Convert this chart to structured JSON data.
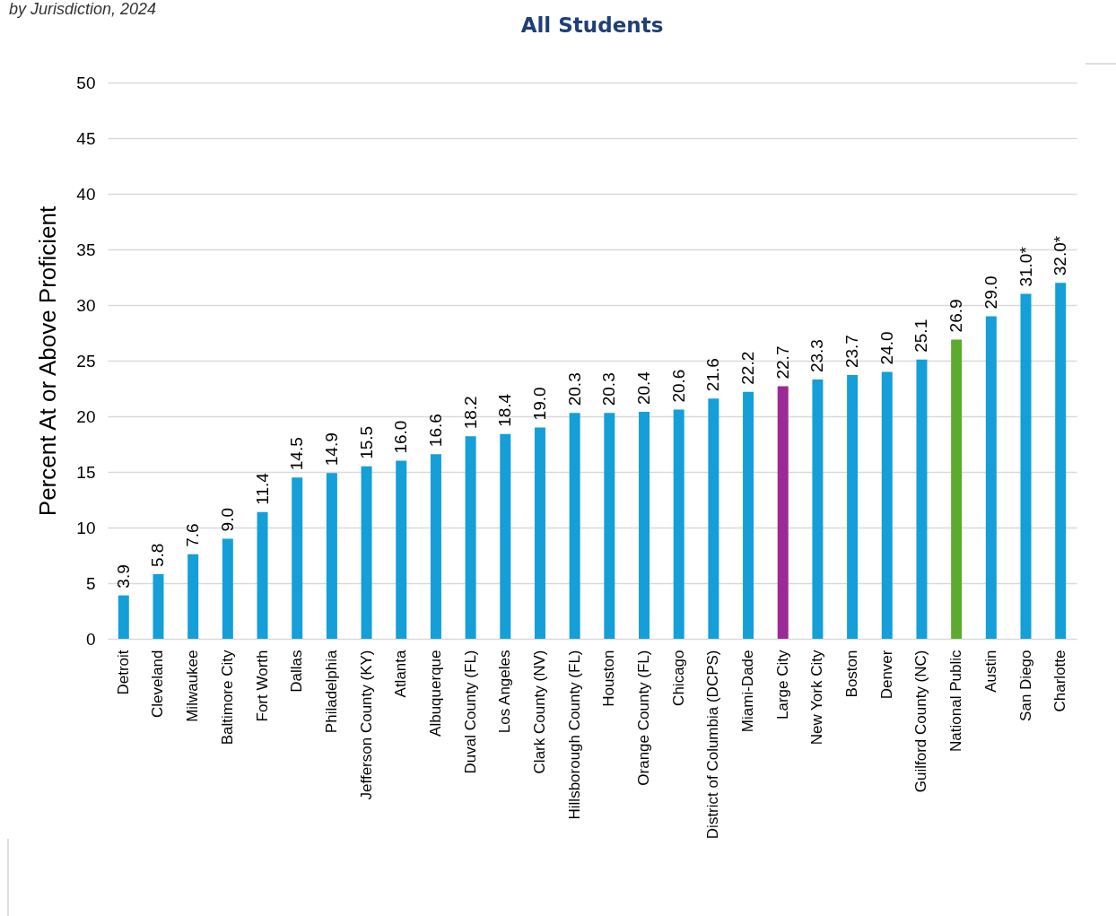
{
  "chart_data": {
    "type": "bar",
    "title": "All Students",
    "subtitle": "by Jurisdiction, 2024",
    "ylabel": "Percent At or Above Proficient",
    "categories": [
      "Detroit",
      "Cleveland",
      "Milwaukee",
      "Baltimore City",
      "Fort Worth",
      "Dallas",
      "Philadelphia",
      "Jefferson County (KY)",
      "Atlanta",
      "Albuquerque",
      "Duval County (FL)",
      "Los Angeles",
      "Clark County (NV)",
      "Hillsborough County (FL)",
      "Houston",
      "Orange County (FL)",
      "Chicago",
      "District of Columbia (DCPS)",
      "Miami-Dade",
      "Large City",
      "New York City",
      "Boston",
      "Denver",
      "Guilford County (NC)",
      "National Public",
      "Austin",
      "San Diego",
      "Charlotte"
    ],
    "values": [
      3.9,
      5.8,
      7.6,
      9.0,
      11.4,
      14.5,
      14.9,
      15.5,
      16.0,
      16.6,
      18.2,
      18.4,
      19.0,
      20.3,
      20.3,
      20.4,
      20.6,
      21.6,
      22.2,
      22.7,
      23.3,
      23.7,
      24.0,
      25.1,
      26.9,
      29.0,
      31.0,
      32.0
    ],
    "value_labels": [
      "3.9",
      "5.8",
      "7.6",
      "9.0",
      "11.4",
      "14.5",
      "14.9",
      "15.5",
      "16.0",
      "16.6",
      "18.2",
      "18.4",
      "19.0",
      "20.3",
      "20.3",
      "20.4",
      "20.6",
      "21.6",
      "22.2",
      "22.7",
      "23.3",
      "23.7",
      "24.0",
      "25.1",
      "26.9",
      "29.0",
      "31.0*",
      "32.0*"
    ],
    "colors": [
      "#149fd8",
      "#149fd8",
      "#149fd8",
      "#149fd8",
      "#149fd8",
      "#149fd8",
      "#149fd8",
      "#149fd8",
      "#149fd8",
      "#149fd8",
      "#149fd8",
      "#149fd8",
      "#149fd8",
      "#149fd8",
      "#149fd8",
      "#149fd8",
      "#149fd8",
      "#149fd8",
      "#149fd8",
      "#9b2a96",
      "#149fd8",
      "#149fd8",
      "#149fd8",
      "#149fd8",
      "#5cab2e",
      "#149fd8",
      "#149fd8",
      "#149fd8"
    ],
    "ylim": [
      0,
      50
    ],
    "yticks": [
      0,
      5,
      10,
      15,
      20,
      25,
      30,
      35,
      40,
      45,
      50
    ],
    "grid": "y"
  }
}
